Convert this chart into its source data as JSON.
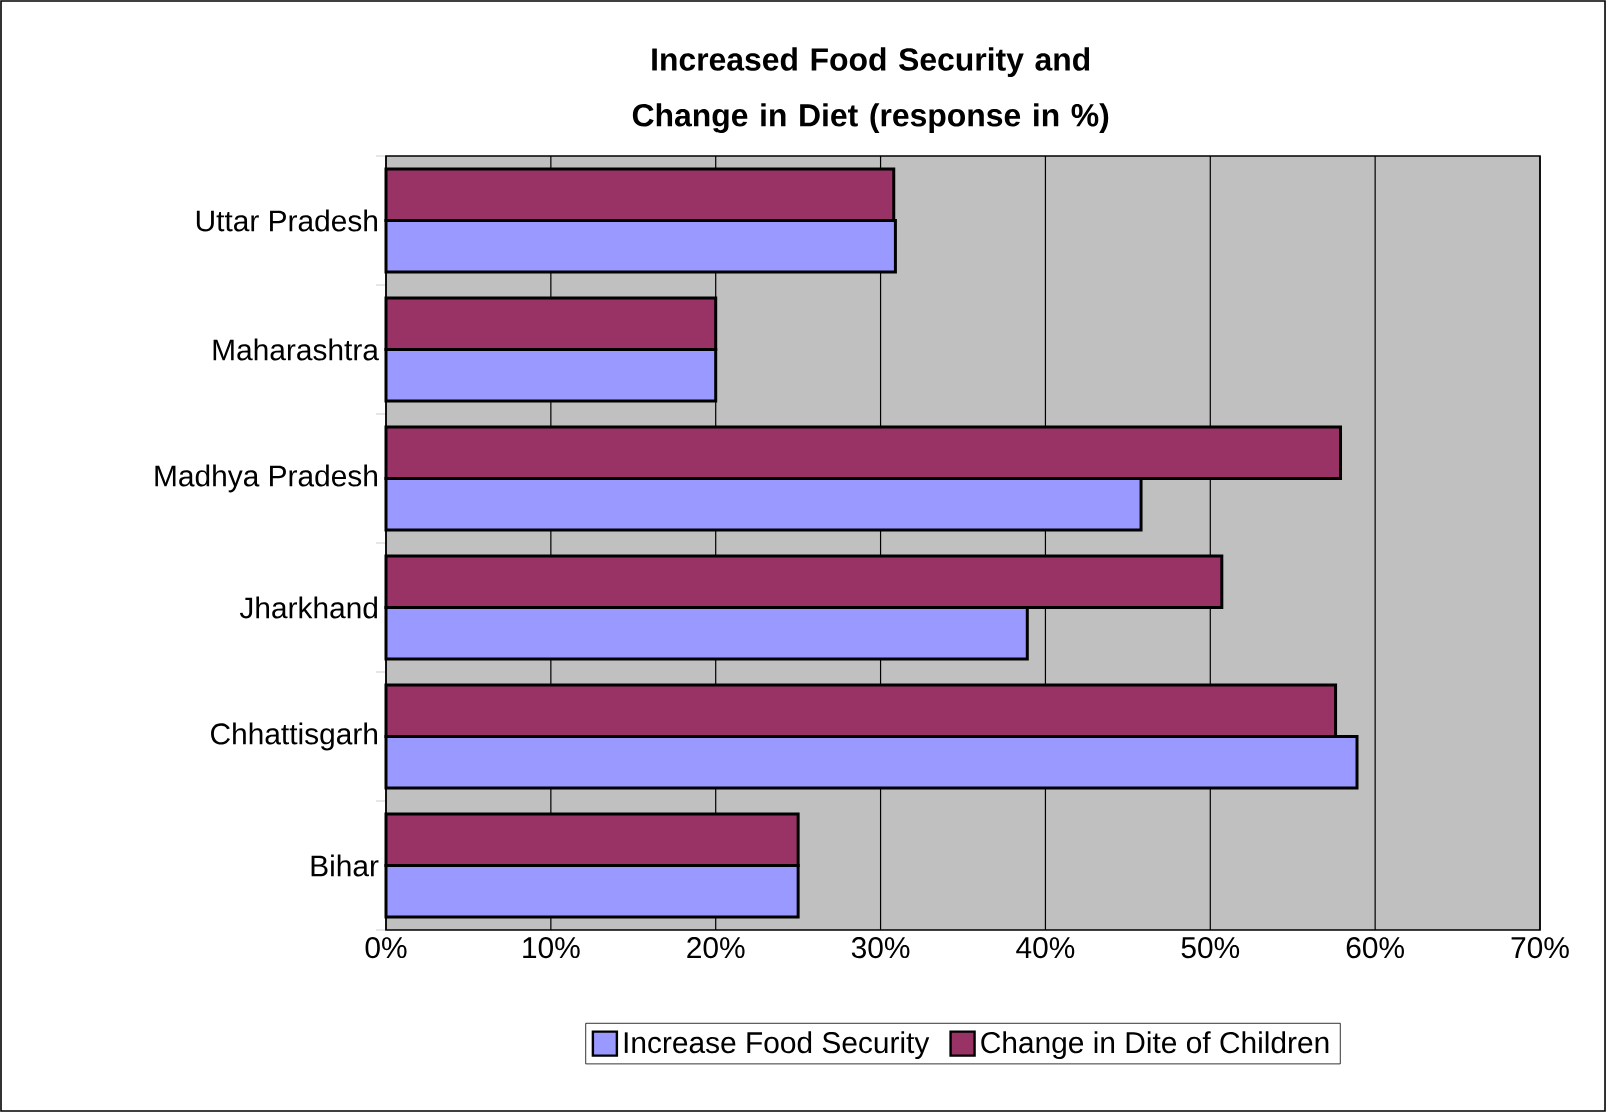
{
  "chart_data": {
    "type": "bar",
    "orientation": "horizontal",
    "title": "Increased Food Security and Change in Diet (response in %)",
    "categories": [
      "Uttar Pradesh",
      "Maharashtra",
      "Madhya Pradesh",
      "Jharkhand",
      "Chhattisgarh",
      "Bihar"
    ],
    "series": [
      {
        "name": "Increase Food Security",
        "color": "#9999ff",
        "values": [
          30.9,
          20.0,
          45.8,
          38.9,
          58.9,
          25.0
        ]
      },
      {
        "name": "Change in Dite of Children",
        "color": "#993366",
        "values": [
          30.8,
          20.0,
          57.9,
          50.7,
          57.6,
          25.0
        ]
      }
    ],
    "xlim": [
      0,
      70
    ],
    "xticks": [
      {
        "value": 0,
        "label": "0%"
      },
      {
        "value": 10,
        "label": "10%"
      },
      {
        "value": 20,
        "label": "20%"
      },
      {
        "value": 30,
        "label": "30%"
      },
      {
        "value": 40,
        "label": "40%"
      },
      {
        "value": 50,
        "label": "50%"
      },
      {
        "value": 60,
        "label": "60%"
      },
      {
        "value": 70,
        "label": "70%"
      }
    ],
    "grid": "x",
    "legend": "bottom"
  }
}
